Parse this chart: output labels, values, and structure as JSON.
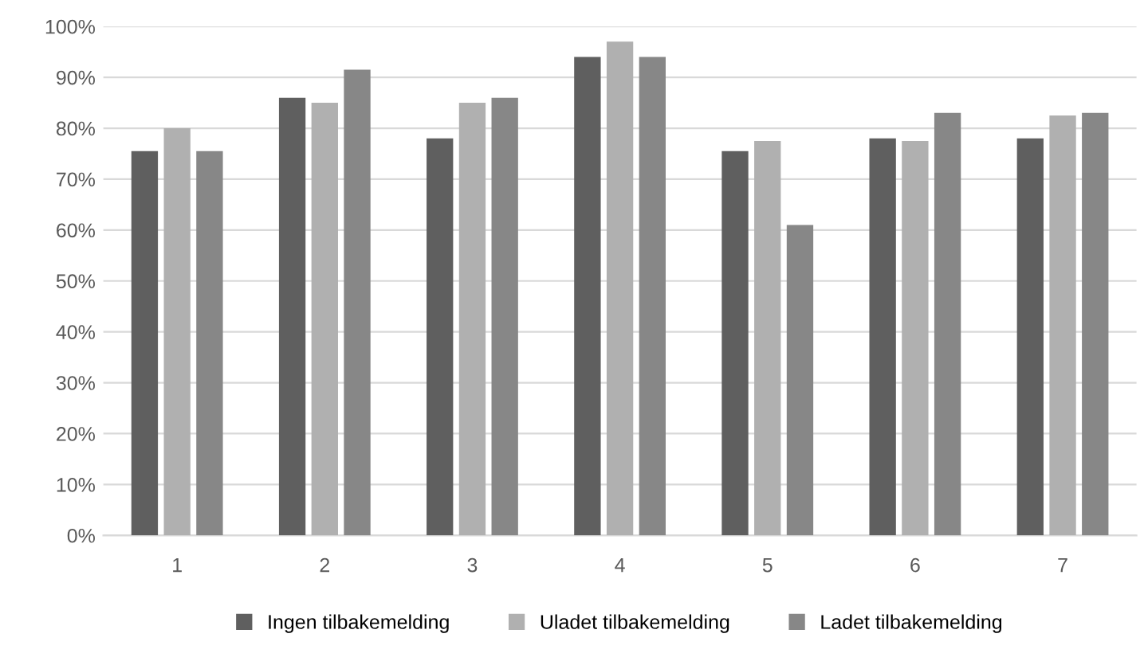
{
  "chart_data": {
    "type": "bar",
    "categories": [
      "1",
      "2",
      "3",
      "4",
      "5",
      "6",
      "7"
    ],
    "series": [
      {
        "name": "Ingen tilbakemelding",
        "color": "#5f5f5f",
        "values": [
          75.5,
          86,
          78,
          94,
          75.5,
          78,
          78
        ]
      },
      {
        "name": "Uladet tilbakemelding",
        "color": "#b0b0b0",
        "values": [
          80,
          85,
          85,
          97,
          77.5,
          77.5,
          82.5
        ]
      },
      {
        "name": "Ladet tilbakemelding",
        "color": "#878787",
        "values": [
          75.5,
          91.5,
          86,
          94,
          61,
          83,
          83
        ]
      }
    ],
    "ylim": [
      0,
      100
    ],
    "yticks": [
      {
        "value": 0,
        "label": "0%"
      },
      {
        "value": 10,
        "label": "10%"
      },
      {
        "value": 20,
        "label": "20%"
      },
      {
        "value": 30,
        "label": "30%"
      },
      {
        "value": 40,
        "label": "40%"
      },
      {
        "value": 50,
        "label": "50%"
      },
      {
        "value": 60,
        "label": "60%"
      },
      {
        "value": 70,
        "label": "70%"
      },
      {
        "value": 80,
        "label": "80%"
      },
      {
        "value": 90,
        "label": "90%"
      },
      {
        "value": 100,
        "label": "100%"
      }
    ],
    "grid": "y",
    "legend": "bottom"
  }
}
